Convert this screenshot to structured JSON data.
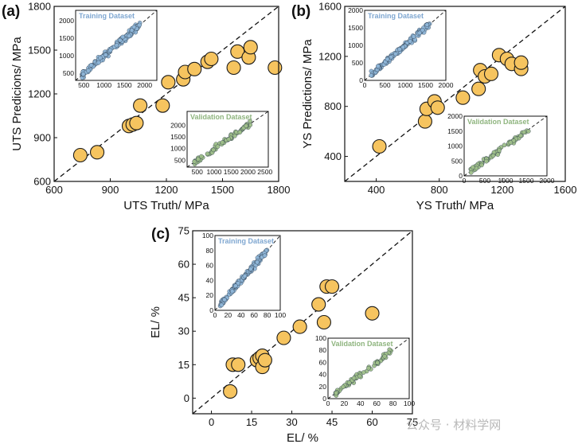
{
  "chart_data": [
    {
      "type": "scatter",
      "panel_label": "(a)",
      "xlabel": "UTS Truth/ MPa",
      "ylabel": "UTS Predicions/ MPa",
      "xlim": [
        600,
        1800
      ],
      "ylim": [
        600,
        1800
      ],
      "xticks": [
        600,
        900,
        1200,
        1500,
        1800
      ],
      "yticks": [
        600,
        900,
        1200,
        1500,
        1800
      ],
      "x": [
        740,
        830,
        1000,
        1020,
        1040,
        1060,
        1180,
        1210,
        1290,
        1300,
        1350,
        1420,
        1440,
        1560,
        1580,
        1640,
        1650,
        1780
      ],
      "y": [
        780,
        800,
        980,
        990,
        1000,
        1120,
        1120,
        1280,
        1300,
        1350,
        1370,
        1420,
        1440,
        1380,
        1490,
        1450,
        1520,
        1380
      ],
      "insets": [
        {
          "title": "Training Dataset",
          "color": "#8fb6d8",
          "title_color": "#7fa7d1",
          "xlim": [
            300,
            2300
          ],
          "ylim": [
            300,
            2300
          ],
          "xticks": [
            500,
            1000,
            1500,
            2000
          ],
          "yticks": [
            500,
            1000,
            1500,
            2000
          ]
        },
        {
          "title": "Validation Dataset",
          "color": "#9fbf8a",
          "title_color": "#8fb57f",
          "xlim": [
            200,
            2600
          ],
          "ylim": [
            200,
            2600
          ],
          "xticks": [
            500,
            1000,
            1500,
            2000,
            2500
          ],
          "yticks": [
            500,
            1000,
            1500,
            2000
          ]
        }
      ]
    },
    {
      "type": "scatter",
      "panel_label": "(b)",
      "xlabel": "YS Truth/ MPa",
      "ylabel": "YS Predictions/ MPa",
      "xlim": [
        200,
        1600
      ],
      "ylim": [
        200,
        1600
      ],
      "xticks": [
        400,
        800,
        1200,
        1600
      ],
      "yticks": [
        400,
        800,
        1200,
        1600
      ],
      "x": [
        420,
        710,
        720,
        770,
        790,
        950,
        1050,
        1060,
        1090,
        1130,
        1180,
        1230,
        1260,
        1320,
        1320
      ],
      "y": [
        480,
        680,
        780,
        840,
        790,
        870,
        940,
        1090,
        1040,
        1060,
        1210,
        1180,
        1140,
        1100,
        1150
      ],
      "insets": [
        {
          "title": "Training Dataset",
          "color": "#8fb6d8",
          "title_color": "#7fa7d1",
          "xlim": [
            0,
            2000
          ],
          "ylim": [
            0,
            2000
          ],
          "xticks": [
            0,
            500,
            1000,
            1500,
            2000
          ],
          "yticks": [
            0,
            500,
            1000,
            1500,
            2000
          ]
        },
        {
          "title": "Validation Dataset",
          "color": "#9fbf8a",
          "title_color": "#8fb57f",
          "xlim": [
            0,
            2000
          ],
          "ylim": [
            0,
            2000
          ],
          "xticks": [
            0,
            500,
            1000,
            1500,
            2000
          ],
          "yticks": [
            0,
            500,
            1000,
            1500,
            2000
          ]
        }
      ]
    },
    {
      "type": "scatter",
      "panel_label": "(c)",
      "xlabel": "EL/ %",
      "ylabel": "EL/ %",
      "xlim": [
        -7,
        75
      ],
      "ylim": [
        -7,
        75
      ],
      "xticks": [
        0,
        15,
        30,
        45,
        60,
        75
      ],
      "yticks": [
        0,
        15,
        30,
        45,
        60,
        75
      ],
      "x": [
        7,
        8,
        10,
        17,
        18,
        19,
        19,
        20,
        27,
        33,
        40,
        42,
        43,
        45,
        60
      ],
      "y": [
        3,
        15,
        15,
        17,
        18,
        14,
        19,
        17,
        27,
        32,
        42,
        34,
        50,
        50,
        38
      ],
      "insets": [
        {
          "title": "Training Dataset",
          "color": "#8fb6d8",
          "title_color": "#7fa7d1",
          "xlim": [
            0,
            100
          ],
          "ylim": [
            0,
            100
          ],
          "xticks": [
            0,
            20,
            40,
            60,
            80,
            100
          ],
          "yticks": [
            0,
            20,
            40,
            60,
            80,
            100
          ]
        },
        {
          "title": "Validation Dataset",
          "color": "#9fbf8a",
          "title_color": "#8fb57f",
          "xlim": [
            0,
            100
          ],
          "ylim": [
            0,
            100
          ],
          "xticks": [
            0,
            20,
            40,
            60,
            80,
            100
          ],
          "yticks": [
            0,
            20,
            40,
            60,
            80,
            100
          ]
        }
      ]
    }
  ],
  "watermark": "公众号 · 材料学网"
}
